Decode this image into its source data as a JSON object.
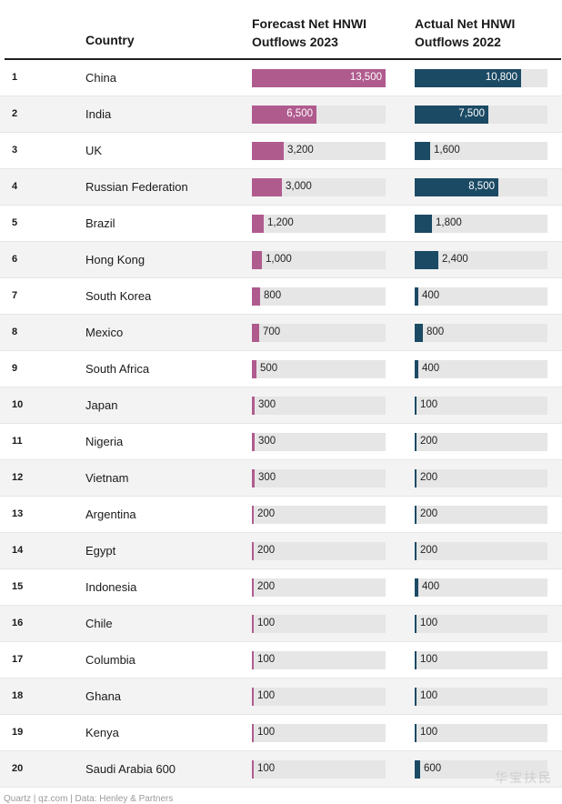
{
  "header": {
    "country": "Country",
    "forecast": "Forecast Net HNWI Outflows 2023",
    "actual": "Actual Net HNWI Outflows 2022"
  },
  "colors": {
    "forecast": "#b05b8e",
    "actual": "#1b4a64",
    "track": "#e6e6e6"
  },
  "chart_data": {
    "type": "bar",
    "scale_max": 13500,
    "categories": [
      "China",
      "India",
      "UK",
      "Russian Federation",
      "Brazil",
      "Hong Kong",
      "South Korea",
      "Mexico",
      "South Africa",
      "Japan",
      "Nigeria",
      "Vietnam",
      "Argentina",
      "Egypt",
      "Indonesia",
      "Chile",
      "Columbia",
      "Ghana",
      "Kenya",
      "Saudi Arabia 600"
    ],
    "ranks": [
      "1",
      "2",
      "3",
      "4",
      "5",
      "6",
      "7",
      "8",
      "9",
      "10",
      "11",
      "12",
      "13",
      "14",
      "15",
      "16",
      "17",
      "18",
      "19",
      "20"
    ],
    "series": [
      {
        "name": "Forecast Net HNWI Outflows 2023",
        "values": [
          13500,
          6500,
          3200,
          3000,
          1200,
          1000,
          800,
          700,
          500,
          300,
          300,
          300,
          200,
          200,
          200,
          100,
          100,
          100,
          100,
          100
        ],
        "labels": [
          "13,500",
          "6,500",
          "3,200",
          "3,000",
          "1,200",
          "1,000",
          "800",
          "700",
          "500",
          "300",
          "300",
          "300",
          "200",
          "200",
          "200",
          "100",
          "100",
          "100",
          "100",
          "100"
        ]
      },
      {
        "name": "Actual Net HNWI Outflows 2022",
        "values": [
          10800,
          7500,
          1600,
          8500,
          1800,
          2400,
          400,
          800,
          400,
          100,
          200,
          200,
          200,
          200,
          400,
          100,
          100,
          100,
          100,
          600
        ],
        "labels": [
          "10,800",
          "7,500",
          "1,600",
          "8,500",
          "1,800",
          "2,400",
          "400",
          "800",
          "400",
          "100",
          "200",
          "200",
          "200",
          "200",
          "400",
          "100",
          "100",
          "100",
          "100",
          "600"
        ]
      }
    ]
  },
  "footer": "Quartz | qz.com | Data: Henley & Partners",
  "watermark": "华宝扶民"
}
